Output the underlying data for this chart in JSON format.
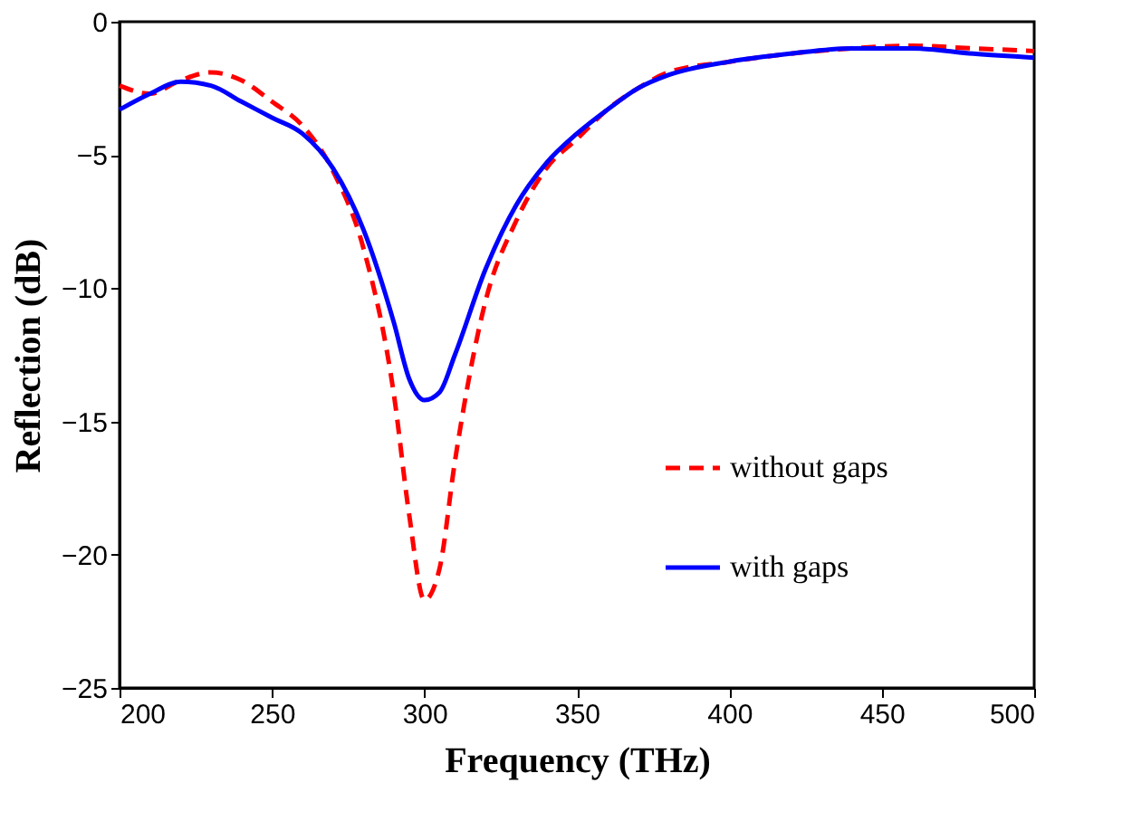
{
  "chart_data": {
    "type": "line",
    "xlabel": "Frequency (THz)",
    "ylabel": "Reflection (dB)",
    "x": [
      200,
      210,
      220,
      230,
      240,
      250,
      260,
      270,
      280,
      290,
      295,
      300,
      305,
      310,
      320,
      330,
      340,
      350,
      360,
      370,
      380,
      400,
      420,
      440,
      460,
      480,
      500
    ],
    "series": [
      {
        "name": "without gaps",
        "color": "#ff0000",
        "line_style": "dashed",
        "values": [
          -2.4,
          -2.7,
          -2.2,
          -1.9,
          -2.2,
          -3.0,
          -3.9,
          -5.6,
          -8.5,
          -14,
          -18.5,
          -21.7,
          -20.5,
          -16.5,
          -10.5,
          -7.5,
          -5.5,
          -4.4,
          -3.3,
          -2.5,
          -1.9,
          -1.5,
          -1.2,
          -1.0,
          -0.9,
          -1.0,
          -1.1
        ]
      },
      {
        "name": "with gaps",
        "color": "#0000ff",
        "line_style": "solid",
        "values": [
          -3.3,
          -2.7,
          -2.25,
          -2.4,
          -3.0,
          -3.6,
          -4.2,
          -5.5,
          -7.8,
          -11.3,
          -13.4,
          -14.2,
          -13.9,
          -12.5,
          -9.3,
          -6.9,
          -5.3,
          -4.2,
          -3.3,
          -2.5,
          -2.0,
          -1.5,
          -1.2,
          -1.0,
          -1.0,
          -1.2,
          -1.35
        ]
      }
    ],
    "xlim": [
      200,
      500
    ],
    "xticks": [
      200,
      250,
      300,
      350,
      400,
      450,
      500
    ],
    "ylim": [
      -25,
      0
    ],
    "yticks": [
      -25,
      -20,
      -15,
      -10,
      -5,
      0
    ],
    "grid": false,
    "legend": "right",
    "marker": "none"
  }
}
